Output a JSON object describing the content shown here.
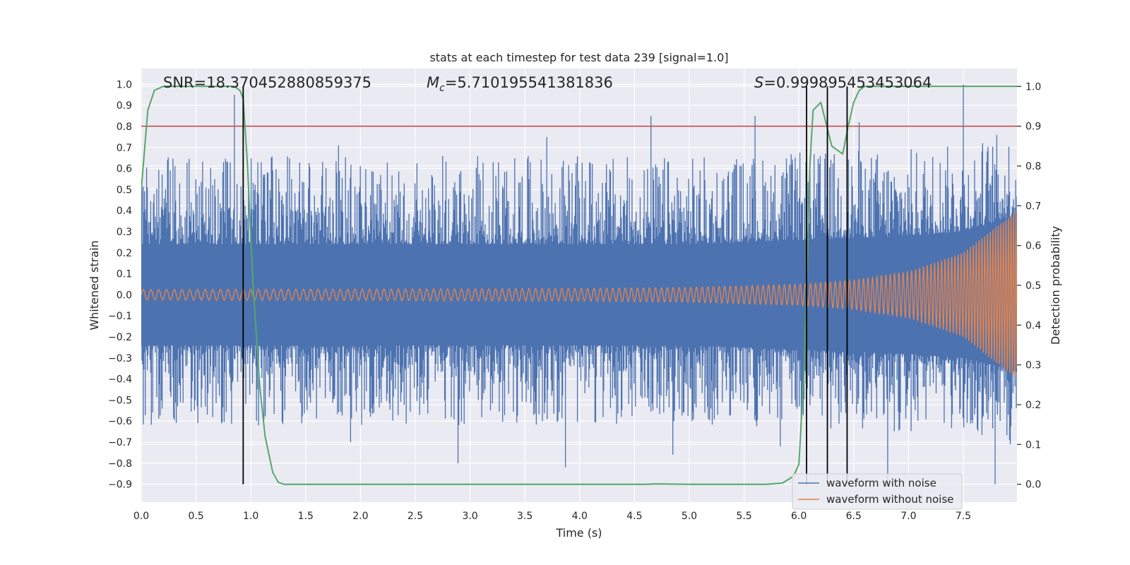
{
  "chart_data": {
    "type": "line",
    "title": "stats at each timestep for test data 239 [signal=1.0]",
    "xlabel": "Time (s)",
    "ylabel": "Whitened strain",
    "y2label": "Detection probability",
    "xlim": [
      0.0,
      7.99
    ],
    "ylim": [
      -0.985,
      1.075
    ],
    "y2lim": [
      -0.045,
      1.045
    ],
    "xticks": [
      0.0,
      0.5,
      1.0,
      1.5,
      2.0,
      2.5,
      3.0,
      3.5,
      4.0,
      4.5,
      5.0,
      5.5,
      6.0,
      6.5,
      7.0,
      7.5
    ],
    "xtick_labels": [
      "0.0",
      "0.5",
      "1.0",
      "1.5",
      "2.0",
      "2.5",
      "3.0",
      "3.5",
      "4.0",
      "4.5",
      "5.0",
      "5.5",
      "6.0",
      "6.5",
      "7.0",
      "7.5"
    ],
    "yticks": [
      1.0,
      0.9,
      0.8,
      0.7,
      0.6,
      0.5,
      0.4,
      0.3,
      0.2,
      0.1,
      0.0,
      -0.1,
      -0.2,
      -0.3,
      -0.4,
      -0.5,
      -0.6,
      -0.7,
      -0.8,
      -0.9
    ],
    "ytick_labels": [
      "1.0",
      "0.9",
      "0.8",
      "0.7",
      "0.6",
      "0.5",
      "0.4",
      "0.3",
      "0.2",
      "0.1",
      "0.0",
      "−0.1",
      "−0.2",
      "−0.3",
      "−0.4",
      "−0.5",
      "−0.6",
      "−0.7",
      "−0.8",
      "−0.9"
    ],
    "y2ticks": [
      1.0,
      0.9,
      0.8,
      0.7,
      0.6,
      0.5,
      0.4,
      0.3,
      0.2,
      0.1,
      0.0
    ],
    "y2tick_labels": [
      "1.0",
      "0.9",
      "0.8",
      "0.7",
      "0.6",
      "0.5",
      "0.4",
      "0.3",
      "0.2",
      "0.1",
      "0.0"
    ],
    "annotations": {
      "snr": "SNR=18.370452880859375",
      "mc_symbol": "M",
      "mc_sub": "c",
      "mc_value": "=5.710195541381836",
      "s_symbol": "S",
      "s_value": "=0.999895453453064"
    },
    "threshold": {
      "axis": "right",
      "value": 0.9,
      "color": "#c44e52"
    },
    "vertical_markers": {
      "x": [
        0.93,
        6.07,
        6.26,
        6.44
      ],
      "y2_range": [
        0.0,
        1.0
      ],
      "color": "#000000"
    },
    "noise_envelope": {
      "name": "waveform with noise",
      "color": "#4c72b0",
      "band_x": [
        0.0,
        1.0,
        2.0,
        3.0,
        4.0,
        5.0,
        5.5,
        6.0,
        6.5,
        7.0,
        7.5,
        7.99
      ],
      "band_upper": [
        0.24,
        0.24,
        0.24,
        0.24,
        0.24,
        0.24,
        0.25,
        0.26,
        0.27,
        0.28,
        0.3,
        0.38
      ],
      "band_lower": [
        -0.24,
        -0.24,
        -0.24,
        -0.24,
        -0.24,
        -0.24,
        -0.25,
        -0.26,
        -0.27,
        -0.28,
        -0.3,
        -0.36
      ],
      "spike_count": 1300,
      "upper_extremes": [
        0.95,
        0.71,
        0.66,
        0.75,
        0.85,
        0.85,
        0.82,
        1.0
      ],
      "lower_extremes": [
        -0.71,
        -0.7,
        -0.8,
        -0.82,
        -0.76,
        -0.72,
        -0.9,
        -0.9
      ]
    },
    "signal": {
      "name": "waveform without noise",
      "color": "#dd8452",
      "amplitude_x": [
        0.0,
        2.0,
        4.0,
        5.0,
        6.0,
        6.5,
        7.0,
        7.5,
        7.99
      ],
      "amplitude": [
        0.025,
        0.027,
        0.03,
        0.035,
        0.05,
        0.07,
        0.11,
        0.2,
        0.4
      ],
      "cycles": [
        {
          "x": 0.0,
          "f": 14
        },
        {
          "x": 2.0,
          "f": 15
        },
        {
          "x": 4.0,
          "f": 17
        },
        {
          "x": 6.0,
          "f": 21
        },
        {
          "x": 7.0,
          "f": 26
        },
        {
          "x": 7.99,
          "f": 45
        }
      ]
    },
    "probability": {
      "name": "detection probability",
      "color": "#55a868",
      "x": [
        0.0,
        0.06,
        0.12,
        0.2,
        0.3,
        0.5,
        0.7,
        0.85,
        0.9,
        0.93,
        0.97,
        1.02,
        1.08,
        1.13,
        1.2,
        1.25,
        1.3,
        1.5,
        2.0,
        3.0,
        4.0,
        4.6,
        4.7,
        5.0,
        5.5,
        5.7,
        5.85,
        5.95,
        6.0,
        6.05,
        6.08,
        6.1,
        6.13,
        6.2,
        6.3,
        6.4,
        6.45,
        6.5,
        6.55,
        6.6,
        7.0,
        7.5,
        7.99
      ],
      "y": [
        0.74,
        0.94,
        0.99,
        1.0,
        1.0,
        1.0,
        1.0,
        1.0,
        0.99,
        0.97,
        0.8,
        0.5,
        0.25,
        0.12,
        0.03,
        0.005,
        0.0,
        0.0,
        0.0,
        0.0,
        0.0,
        0.0,
        0.001,
        0.0,
        0.0,
        0.0,
        0.003,
        0.02,
        0.05,
        0.3,
        0.6,
        0.8,
        0.94,
        0.96,
        0.85,
        0.83,
        0.9,
        0.96,
        0.99,
        1.0,
        1.0,
        1.0,
        1.0
      ]
    },
    "legend": {
      "position": "lower-right",
      "entries": [
        {
          "label": "waveform with noise",
          "color": "#4c72b0"
        },
        {
          "label": "waveform without noise",
          "color": "#dd8452"
        }
      ]
    },
    "grid": true,
    "background_color": "#eaeaf2"
  }
}
